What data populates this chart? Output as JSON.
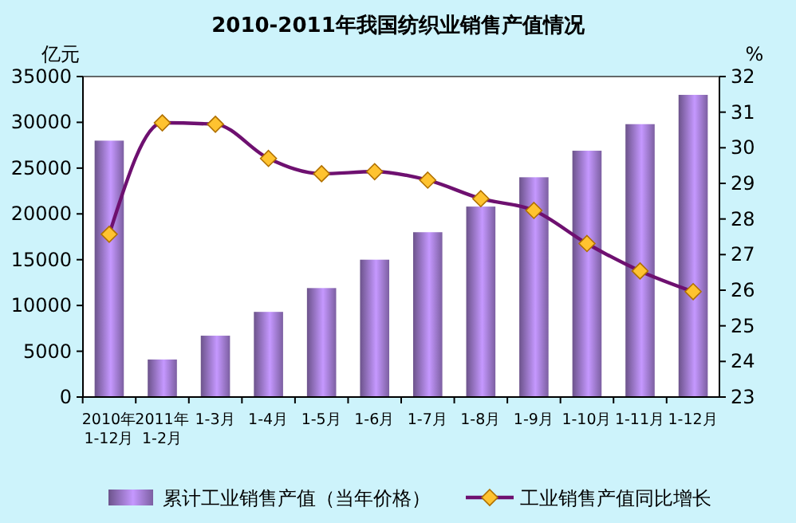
{
  "chart_data": {
    "type": "bar",
    "title": "2010-2011年我国纺织业销售产值情况",
    "ylabel": "亿元",
    "y2label": "%",
    "categories": [
      "2010年\n1-12月",
      "2011年\n1-2月",
      "1-3月",
      "1-4月",
      "1-5月",
      "1-6月",
      "1-7月",
      "1-8月",
      "1-9月",
      "1-10月",
      "1-11月",
      "1-12月"
    ],
    "series": [
      {
        "name": "累计工业销售产值（当年价格）",
        "color": "#a57fd6",
        "values": [
          28000,
          4100,
          6700,
          9300,
          11900,
          15000,
          18000,
          20800,
          24000,
          26900,
          29800,
          33000
        ]
      },
      {
        "name": "工业销售产值同比增长",
        "type": "line",
        "axis": "y2",
        "color": "#6e1070",
        "marker": "diamond",
        "values": [
          27.57,
          30.7,
          30.66,
          29.7,
          29.27,
          29.33,
          29.09,
          28.57,
          28.24,
          27.31,
          26.54,
          25.96
        ]
      }
    ],
    "ylim": [
      0,
      35000
    ],
    "yticks": [
      0,
      5000,
      10000,
      15000,
      20000,
      25000,
      30000,
      35000
    ],
    "y2lim": [
      23,
      32
    ],
    "y2ticks": [
      23,
      24,
      25,
      26,
      27,
      28,
      29,
      30,
      31,
      32
    ],
    "legend": "bottom",
    "grid": false
  }
}
